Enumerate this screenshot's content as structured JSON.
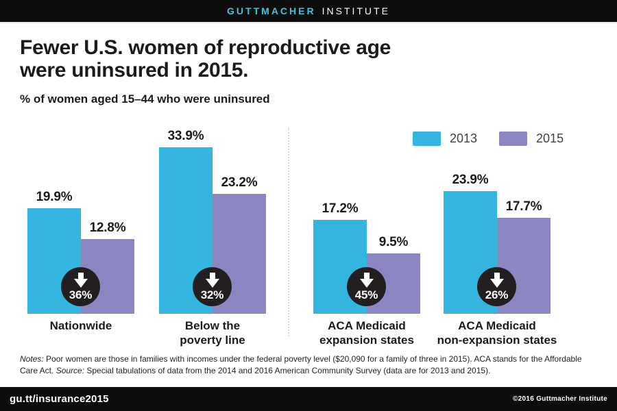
{
  "header": {
    "brand_primary": "GUTTMACHER",
    "brand_secondary": "INSTITUTE"
  },
  "title": {
    "line1": "Fewer U.S. women of reproductive age",
    "line2": "were uninsured in 2015."
  },
  "subtitle": "% of women aged 15–44 who were uninsured",
  "chart_data": {
    "type": "bar",
    "title": "Fewer U.S. women of reproductive age were uninsured in 2015.",
    "subtitle": "% of women aged 15–44 who were uninsured",
    "unit": "percent",
    "categories": [
      "Nationwide",
      "Below the poverty line",
      "ACA Medicaid expansion states",
      "ACA Medicaid non-expansion states"
    ],
    "category_label_lines": [
      [
        "Nationwide"
      ],
      [
        "Below the",
        "poverty line"
      ],
      [
        "ACA Medicaid",
        "expansion states"
      ],
      [
        "ACA Medicaid",
        "non-expansion states"
      ]
    ],
    "series": [
      {
        "name": "2013",
        "color": "#33b5df",
        "values": [
          19.9,
          33.9,
          17.2,
          23.9
        ],
        "labels": [
          "19.9%",
          "33.9%",
          "17.2%",
          "23.9%"
        ]
      },
      {
        "name": "2015",
        "color": "#8b85c1",
        "values": [
          12.8,
          23.2,
          9.5,
          17.7
        ],
        "labels": [
          "12.8%",
          "23.2%",
          "9.5%",
          "17.7%"
        ]
      }
    ],
    "percent_change_badges": [
      {
        "label": "36%",
        "direction": "down"
      },
      {
        "label": "32%",
        "direction": "down"
      },
      {
        "label": "45%",
        "direction": "down"
      },
      {
        "label": "26%",
        "direction": "down"
      }
    ],
    "ylim": [
      0,
      36
    ],
    "grid": false,
    "legend_position": "top-right",
    "separator_after_category_index": 1
  },
  "notes": {
    "segments": [
      {
        "text": "Notes:",
        "italic": true
      },
      {
        "text": " Poor women are those in families with incomes under the federal poverty level ($20,090 for a family of three in 2015). ACA stands for the Affordable Care Act. ",
        "italic": false
      },
      {
        "text": "Source:",
        "italic": true
      },
      {
        "text": " Special tabulations of data from the 2014 and 2016 American Community Survey (data are for 2013 and 2015).",
        "italic": false
      }
    ]
  },
  "footer": {
    "link": "gu.tt/insurance2015",
    "copyright": "©2016 Guttmacher Institute"
  },
  "colors": {
    "brand_cyan": "#45c2d8",
    "bar_2013": "#33b5df",
    "bar_2015": "#8b85c1",
    "badge_black": "#231f20",
    "band_black": "#0d0d0d"
  }
}
